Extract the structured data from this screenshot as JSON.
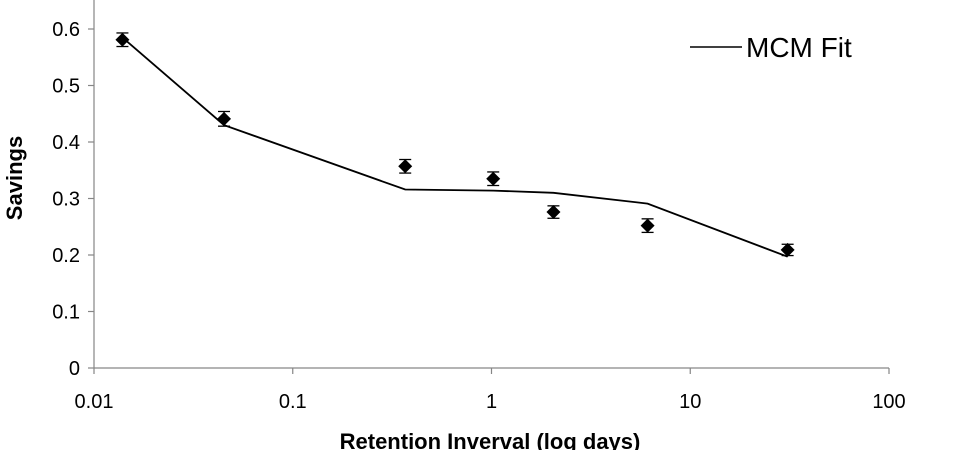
{
  "chart_data": {
    "type": "line",
    "x_scale": "log",
    "xlabel": "Retention Inverval (log days)",
    "ylabel": "Savings",
    "xlim": [
      0.01,
      100
    ],
    "ylim": [
      0,
      0.65
    ],
    "x_ticks": [
      "0.01",
      "0.1",
      "1",
      "10",
      "100"
    ],
    "y_ticks": [
      "0",
      "0.1",
      "0.2",
      "0.3",
      "0.4",
      "0.5",
      "0.6"
    ],
    "grid": false,
    "legend_position": "top-right",
    "series": [
      {
        "name": "",
        "kind": "scatter-with-error-bars",
        "marker": "diamond",
        "color": "#000000",
        "x": [
          0.0139,
          0.0451,
          0.368,
          1.02,
          2.05,
          6.1,
          30.9
        ],
        "y": [
          0.581,
          0.441,
          0.357,
          0.335,
          0.276,
          0.252,
          0.209
        ],
        "error": [
          0.012,
          0.013,
          0.012,
          0.012,
          0.011,
          0.012,
          0.01
        ]
      },
      {
        "name": "MCM Fit",
        "kind": "line",
        "color": "#000000",
        "x": [
          0.0139,
          0.0451,
          0.368,
          1.02,
          2.05,
          6.1,
          30.9
        ],
        "y": [
          0.585,
          0.43,
          0.316,
          0.314,
          0.31,
          0.291,
          0.197
        ]
      }
    ]
  }
}
